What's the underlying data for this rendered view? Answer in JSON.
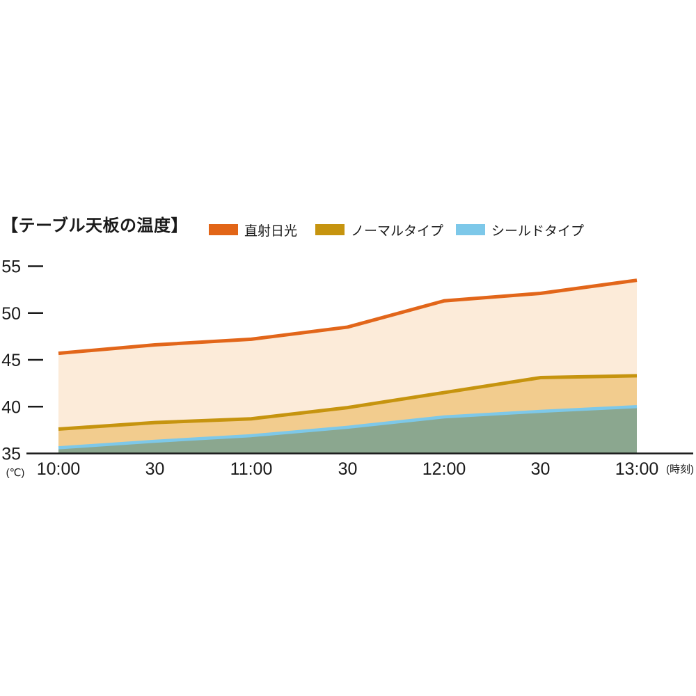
{
  "title": "【テーブル天板の温度】",
  "legend": [
    {
      "label": "直射日光",
      "color": "#e26517"
    },
    {
      "label": "ノーマルタイプ",
      "color": "#c6940f"
    },
    {
      "label": "シールドタイプ",
      "color": "#7dc8e9"
    }
  ],
  "axis_units": {
    "y_unit": "(℃)",
    "x_unit": "(時刻)"
  },
  "chart_data": {
    "type": "area",
    "title": "テーブル天板の温度",
    "x_labels": [
      "10:00",
      "30",
      "11:00",
      "30",
      "12:00",
      "30",
      "13:00"
    ],
    "y_ticks": [
      35,
      40,
      45,
      50,
      55
    ],
    "ylim": [
      35,
      55
    ],
    "grid": false,
    "legend_position": "top",
    "series": [
      {
        "name": "直射日光",
        "line_color": "#e2661a",
        "fill_color": "#fcebd9",
        "values": [
          45.7,
          46.6,
          47.2,
          48.5,
          51.3,
          52.1,
          53.5
        ]
      },
      {
        "name": "ノーマルタイプ",
        "line_color": "#c6940f",
        "fill_color": "#f2cc8e",
        "values": [
          37.6,
          38.3,
          38.7,
          39.9,
          41.5,
          43.1,
          43.3
        ]
      },
      {
        "name": "シールドタイプ",
        "line_color": "#7dc8e9",
        "fill_color": "#8ba78f",
        "values": [
          35.6,
          36.3,
          36.9,
          37.8,
          38.9,
          39.5,
          40.0
        ]
      }
    ]
  }
}
